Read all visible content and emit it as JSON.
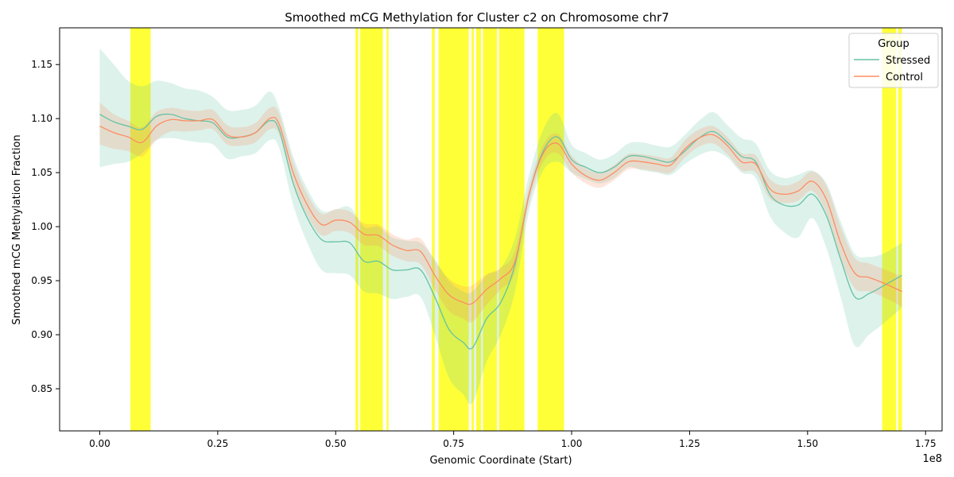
{
  "chart_data": {
    "type": "line",
    "title": "Smoothed mCG Methylation for Cluster c2 on Chromosome chr7",
    "xlabel": "Genomic Coordinate (Start)",
    "ylabel": "Smoothed mCG Methylation Fraction",
    "x_scale_label": "1e8",
    "xlim": [
      -8500000,
      178500000
    ],
    "ylim": [
      0.811,
      1.184
    ],
    "grid": false,
    "x_ticks": [
      {
        "value": 0,
        "label": "0.00"
      },
      {
        "value": 25000000,
        "label": "0.25"
      },
      {
        "value": 50000000,
        "label": "0.50"
      },
      {
        "value": 75000000,
        "label": "0.75"
      },
      {
        "value": 100000000,
        "label": "1.00"
      },
      {
        "value": 125000000,
        "label": "1.25"
      },
      {
        "value": 150000000,
        "label": "1.50"
      },
      {
        "value": 175000000,
        "label": "1.75"
      }
    ],
    "y_ticks": [
      {
        "value": 0.85,
        "label": "0.85"
      },
      {
        "value": 0.9,
        "label": "0.90"
      },
      {
        "value": 0.95,
        "label": "0.95"
      },
      {
        "value": 1.0,
        "label": "1.00"
      },
      {
        "value": 1.05,
        "label": "1.05"
      },
      {
        "value": 1.1,
        "label": "1.10"
      },
      {
        "value": 1.15,
        "label": "1.15"
      }
    ],
    "legend": {
      "title": "Group",
      "placement": "top-right"
    },
    "highlight_color": "#ffff00",
    "highlight_regions": [
      [
        6500000,
        10800000
      ],
      [
        54200000,
        54800000
      ],
      [
        55200000,
        60000000
      ],
      [
        60800000,
        61200000
      ],
      [
        70400000,
        71000000
      ],
      [
        71800000,
        78200000
      ],
      [
        78800000,
        79300000
      ],
      [
        79800000,
        80800000
      ],
      [
        81200000,
        84200000
      ],
      [
        84600000,
        85200000
      ],
      [
        85200000,
        90000000
      ],
      [
        92800000,
        98400000
      ],
      [
        165800000,
        168800000
      ],
      [
        169200000,
        170000000
      ]
    ],
    "x": [
      0,
      3000000,
      6000000,
      9000000,
      12000000,
      15000000,
      18000000,
      21000000,
      24000000,
      27000000,
      30000000,
      33000000,
      36000000,
      38000000,
      41000000,
      44000000,
      47000000,
      50000000,
      53000000,
      56000000,
      59000000,
      62000000,
      65000000,
      68000000,
      71000000,
      74000000,
      77000000,
      79000000,
      82000000,
      85000000,
      88000000,
      91000000,
      94000000,
      97000000,
      100000000,
      103000000,
      106000000,
      109000000,
      112000000,
      115000000,
      118000000,
      121000000,
      124000000,
      127000000,
      130000000,
      133000000,
      136000000,
      139000000,
      142000000,
      145000000,
      148000000,
      151000000,
      154000000,
      157000000,
      160000000,
      163000000,
      166000000,
      170000000
    ],
    "series": [
      {
        "name": "Stressed",
        "color": "#66c2a5",
        "values": [
          1.104,
          1.097,
          1.093,
          1.09,
          1.102,
          1.104,
          1.1,
          1.098,
          1.096,
          1.083,
          1.083,
          1.087,
          1.098,
          1.09,
          1.04,
          1.008,
          0.988,
          0.986,
          0.985,
          0.968,
          0.968,
          0.96,
          0.96,
          0.96,
          0.935,
          0.905,
          0.893,
          0.888,
          0.915,
          0.93,
          0.965,
          1.03,
          1.07,
          1.083,
          1.062,
          1.055,
          1.05,
          1.055,
          1.065,
          1.065,
          1.062,
          1.06,
          1.07,
          1.082,
          1.088,
          1.078,
          1.065,
          1.06,
          1.03,
          1.02,
          1.02,
          1.03,
          1.01,
          0.97,
          0.935,
          0.938,
          0.945,
          0.955
        ],
        "band_lower": [
          1.055,
          1.058,
          1.06,
          1.068,
          1.08,
          1.082,
          1.08,
          1.078,
          1.076,
          1.063,
          1.065,
          1.068,
          1.08,
          1.073,
          1.02,
          0.985,
          0.96,
          0.957,
          0.955,
          0.94,
          0.938,
          0.933,
          0.935,
          0.935,
          0.9,
          0.86,
          0.845,
          0.837,
          0.875,
          0.9,
          0.94,
          1.015,
          1.052,
          1.06,
          1.05,
          1.044,
          1.04,
          1.045,
          1.055,
          1.052,
          1.05,
          1.048,
          1.058,
          1.066,
          1.07,
          1.064,
          1.05,
          1.045,
          1.01,
          0.995,
          0.99,
          1.008,
          0.98,
          0.935,
          0.89,
          0.9,
          0.91,
          0.925
        ],
        "band_upper": [
          1.165,
          1.15,
          1.135,
          1.13,
          1.135,
          1.133,
          1.128,
          1.126,
          1.12,
          1.108,
          1.108,
          1.112,
          1.125,
          1.11,
          1.065,
          1.035,
          1.015,
          1.016,
          1.018,
          1.0,
          1.0,
          0.99,
          0.987,
          0.985,
          0.97,
          0.95,
          0.94,
          0.94,
          0.955,
          0.962,
          0.99,
          1.048,
          1.09,
          1.105,
          1.076,
          1.068,
          1.062,
          1.067,
          1.077,
          1.078,
          1.075,
          1.074,
          1.085,
          1.098,
          1.106,
          1.094,
          1.082,
          1.077,
          1.052,
          1.045,
          1.048,
          1.052,
          1.04,
          1.005,
          0.975,
          0.972,
          0.975,
          0.985
        ]
      },
      {
        "name": "Control",
        "color": "#fc8d62",
        "values": [
          1.093,
          1.087,
          1.083,
          1.078,
          1.093,
          1.099,
          1.098,
          1.098,
          1.099,
          1.085,
          1.083,
          1.087,
          1.1,
          1.095,
          1.05,
          1.02,
          1.002,
          1.006,
          1.004,
          0.993,
          0.992,
          0.983,
          0.978,
          0.977,
          0.955,
          0.937,
          0.93,
          0.929,
          0.942,
          0.952,
          0.968,
          1.03,
          1.068,
          1.077,
          1.058,
          1.047,
          1.043,
          1.05,
          1.06,
          1.06,
          1.058,
          1.057,
          1.072,
          1.082,
          1.085,
          1.075,
          1.06,
          1.058,
          1.035,
          1.03,
          1.033,
          1.042,
          1.025,
          0.985,
          0.957,
          0.953,
          0.948,
          0.94
        ],
        "band_lower": [
          1.076,
          1.072,
          1.07,
          1.065,
          1.08,
          1.088,
          1.088,
          1.089,
          1.09,
          1.076,
          1.075,
          1.078,
          1.09,
          1.085,
          1.04,
          1.01,
          0.992,
          0.996,
          0.994,
          0.983,
          0.982,
          0.973,
          0.968,
          0.965,
          0.942,
          0.922,
          0.915,
          0.912,
          0.928,
          0.942,
          0.958,
          1.022,
          1.06,
          1.068,
          1.05,
          1.04,
          1.036,
          1.043,
          1.053,
          1.053,
          1.051,
          1.05,
          1.064,
          1.074,
          1.077,
          1.067,
          1.052,
          1.05,
          1.026,
          1.022,
          1.024,
          1.033,
          1.012,
          0.97,
          0.943,
          0.94,
          0.935,
          0.926
        ],
        "band_upper": [
          1.115,
          1.104,
          1.098,
          1.092,
          1.106,
          1.11,
          1.108,
          1.107,
          1.108,
          1.094,
          1.092,
          1.096,
          1.11,
          1.105,
          1.06,
          1.03,
          1.012,
          1.016,
          1.014,
          1.003,
          1.002,
          0.993,
          0.988,
          0.989,
          0.968,
          0.952,
          0.945,
          0.946,
          0.956,
          0.962,
          0.978,
          1.038,
          1.076,
          1.086,
          1.066,
          1.054,
          1.05,
          1.057,
          1.067,
          1.067,
          1.065,
          1.064,
          1.08,
          1.09,
          1.093,
          1.083,
          1.068,
          1.066,
          1.044,
          1.038,
          1.042,
          1.051,
          1.038,
          1.0,
          0.971,
          0.966,
          0.961,
          0.954
        ]
      }
    ]
  }
}
